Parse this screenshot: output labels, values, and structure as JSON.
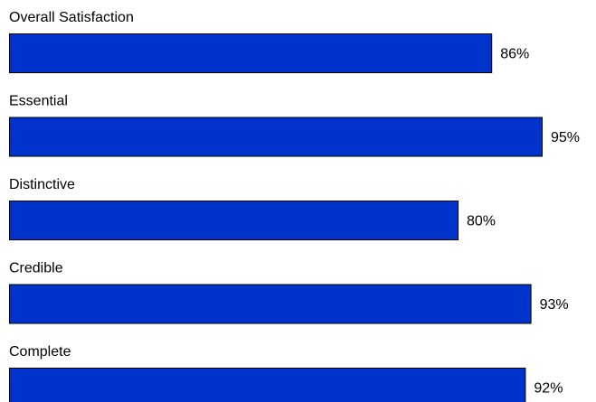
{
  "chart_data": {
    "type": "bar",
    "orientation": "horizontal",
    "categories": [
      "Overall Satisfaction",
      "Essential",
      "Distinctive",
      "Credible",
      "Complete"
    ],
    "values": [
      86,
      95,
      80,
      93,
      92
    ],
    "value_labels": [
      "86%",
      "95%",
      "80%",
      "93%",
      "92%"
    ],
    "unit": "%",
    "xlim": [
      0,
      100
    ],
    "grid": false,
    "legend": "none",
    "bar_color": "#0033CC",
    "bar_outline_color": "#000000"
  }
}
